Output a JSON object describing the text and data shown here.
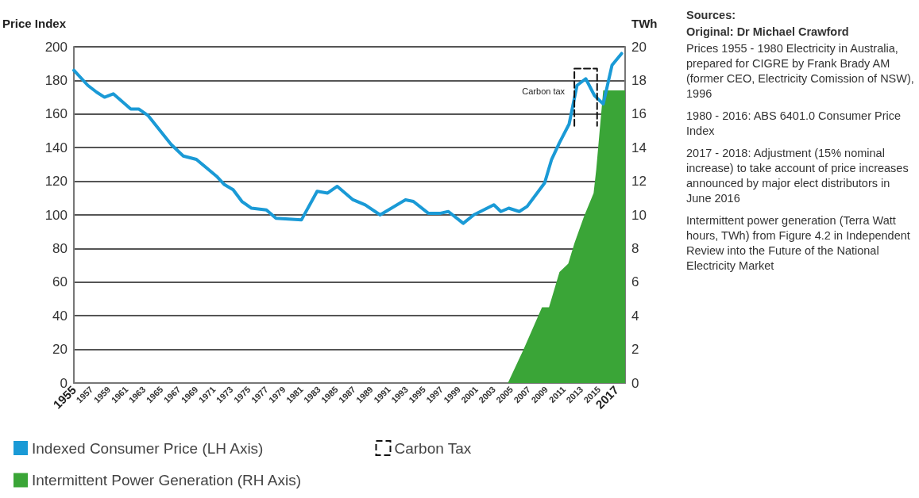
{
  "chart_data": {
    "type": "line",
    "ylabel": "Price Index",
    "y2label": "TWh",
    "xlim": [
      1955,
      2018
    ],
    "xticks": [
      1955,
      1957,
      1959,
      1961,
      1963,
      1965,
      1967,
      1969,
      1971,
      1973,
      1975,
      1977,
      1979,
      1981,
      1983,
      1985,
      1987,
      1989,
      1991,
      1993,
      1995,
      1997,
      1999,
      2001,
      2003,
      2005,
      2007,
      2009,
      2011,
      2013,
      2015,
      2017
    ],
    "ylim": [
      0,
      200
    ],
    "yticks": [
      0,
      20,
      40,
      60,
      80,
      100,
      120,
      140,
      160,
      180,
      200
    ],
    "y2lim": [
      0,
      20
    ],
    "y2ticks": [
      0,
      2,
      4,
      6,
      8,
      10,
      12,
      14,
      16,
      18,
      20
    ],
    "grid": "y",
    "legend": "bottom left",
    "marker": "none",
    "series": [
      {
        "name": "Indexed Consumer Price (LH Axis)",
        "color": "#1a9ad6",
        "x": [
          1955,
          1956.6,
          1957.6,
          1958.5,
          1959.5,
          1961.5,
          1962.4,
          1963.5,
          1966.1,
          1967.5,
          1969,
          1971.3,
          1972.2,
          1973.2,
          1974.2,
          1975.3,
          1977,
          1978.1,
          1981,
          1982.8,
          1984,
          1985.1,
          1986.9,
          1988.3,
          1990,
          1992.9,
          1993.8,
          1995.5,
          1996.9,
          1997.8,
          1999.5,
          2000.7,
          2003,
          2003.8,
          2004.7,
          2005.9,
          2006.8,
          2008.8,
          2009.6,
          2010.5,
          2011.6,
          2012.5,
          2013.5,
          2014.5,
          2015.5,
          2016.5,
          2017.6
        ],
        "values": [
          186,
          177,
          173,
          170,
          172,
          163,
          163,
          159,
          142,
          135,
          133,
          123,
          118,
          115,
          108,
          104,
          103,
          98,
          97,
          114,
          113,
          117,
          109,
          106,
          100,
          109,
          108,
          101,
          101,
          102,
          95,
          100,
          106,
          102,
          104,
          102,
          105,
          119,
          133,
          143,
          154,
          177,
          181,
          171,
          166,
          189,
          196
        ]
      },
      {
        "name": "Carbon Tax",
        "line_style": "dashed",
        "color": "#111111",
        "x": [
          2012.2,
          2012.2,
          2014.8,
          2014.8
        ],
        "values": [
          153,
          187,
          187,
          153
        ]
      },
      {
        "name": "Intermittent Power Generation (RH Axis)",
        "type": "area",
        "axis": "y2",
        "color": "#3aa537",
        "x": [
          2004.6,
          2006.4,
          2008.5,
          2009.3,
          2010.5,
          2011.5,
          2012.2,
          2013.3,
          2014.4,
          2014.7,
          2015.5,
          2018
        ],
        "values": [
          0,
          2.0,
          4.5,
          4.5,
          6.6,
          7.1,
          8.3,
          9.9,
          11.3,
          12.7,
          17.4,
          17.4
        ]
      }
    ],
    "annotations": [
      "Carbon tax",
      "Sources:",
      "Original: Dr Michael Crawford",
      "Prices 1955 - 1980 Electricity in Australia, prepared for CIGRE by Frank Brady AM (former CEO, Electricity Comission of NSW), 1996",
      "1980 - 2016: ABS 6401.0 Consumer Price Index",
      "2017 - 2018: Adjustment (15% nominal increase) to take account of price increases announced by major elect distributors in June 2016",
      "Intermittent power generation (Terra Watt hours, TWh) from Figure 4.2 in Independent Review into the Future of the National Electricity Market"
    ]
  }
}
